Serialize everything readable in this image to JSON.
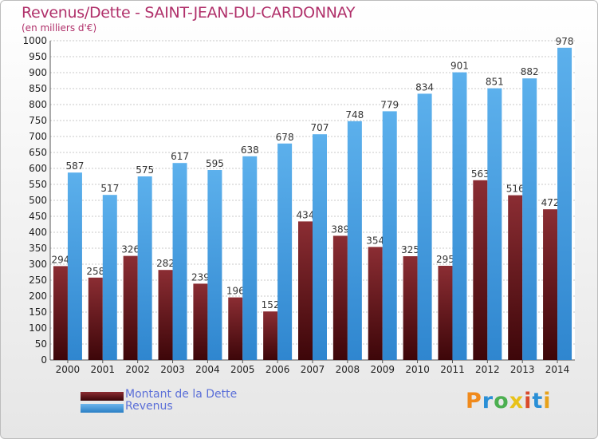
{
  "chart_data": {
    "type": "bar",
    "title": "Revenus/Dette - SAINT-JEAN-DU-CARDONNAY",
    "subtitle": "(en milliers d'€)",
    "xlabel": "",
    "ylabel": "",
    "categories": [
      "2000",
      "2001",
      "2002",
      "2003",
      "2004",
      "2005",
      "2006",
      "2007",
      "2008",
      "2009",
      "2010",
      "2011",
      "2012",
      "2013",
      "2014"
    ],
    "series": [
      {
        "name": "Montant de la Dette",
        "color": "#7a1f24",
        "values": [
          294,
          258,
          326,
          282,
          239,
          196,
          152,
          434,
          389,
          354,
          325,
          295,
          563,
          516,
          472
        ]
      },
      {
        "name": "Revenus",
        "color": "#4aa0e0",
        "values": [
          587,
          517,
          575,
          617,
          595,
          638,
          678,
          707,
          748,
          779,
          834,
          901,
          851,
          882,
          978
        ]
      }
    ],
    "ylim": [
      0,
      1000
    ],
    "ytick_step": 50,
    "grid": true,
    "legend_position": "bottom-left"
  },
  "brand": {
    "logo_letters": [
      "P",
      "r",
      "o",
      "x",
      "i",
      "t",
      "i"
    ],
    "logo_colors": [
      "#f08a1c",
      "#2a8fd6",
      "#4caf50",
      "#e8c21a",
      "#d94a2b",
      "#2a8fd6",
      "#e8a21a"
    ]
  }
}
